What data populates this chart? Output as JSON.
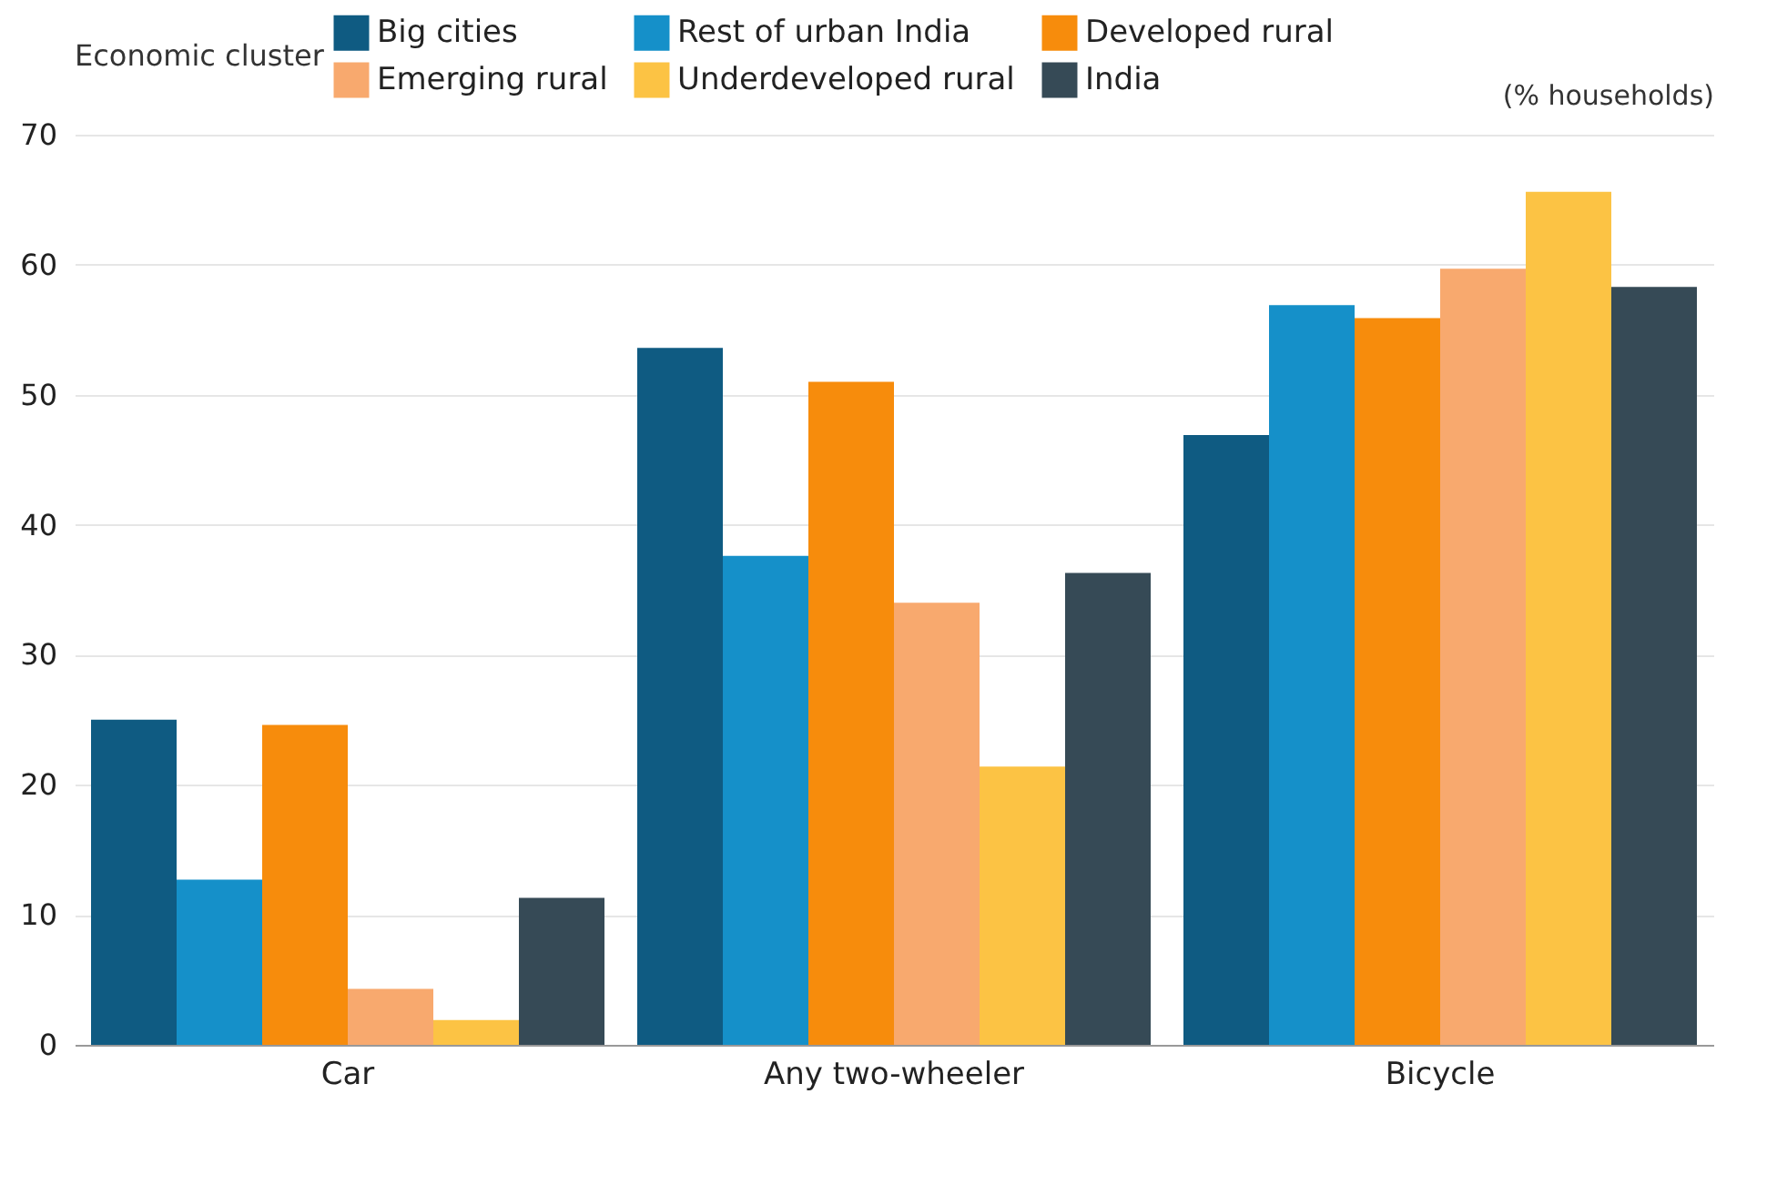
{
  "chart_data": {
    "type": "bar",
    "ylabel": "(% households)",
    "legend_title": "Economic cluster",
    "legend": "top left",
    "grid": "y",
    "categories": [
      "Car",
      "Any two-wheeler",
      "Bicycle"
    ],
    "ylim": [
      0,
      70
    ],
    "yticks": [
      0,
      10,
      20,
      30,
      40,
      50,
      60,
      70
    ],
    "series": [
      {
        "name": "Big cities",
        "color": "#0f5b82",
        "values": [
          25,
          53.6,
          46.9
        ]
      },
      {
        "name": "Rest of urban India",
        "color": "#1590c9",
        "values": [
          12.7,
          37.6,
          56.9
        ]
      },
      {
        "name": "Developed rural",
        "color": "#f78c0c",
        "values": [
          24.6,
          51,
          55.9
        ]
      },
      {
        "name": "Emerging rural",
        "color": "#f8a96e",
        "values": [
          4.3,
          34,
          59.7
        ]
      },
      {
        "name": "Underdeveloped rural",
        "color": "#fcc344",
        "values": [
          1.9,
          21.4,
          65.6
        ]
      },
      {
        "name": "India",
        "color": "#364a56",
        "values": [
          11.3,
          36.3,
          58.3
        ]
      }
    ]
  }
}
